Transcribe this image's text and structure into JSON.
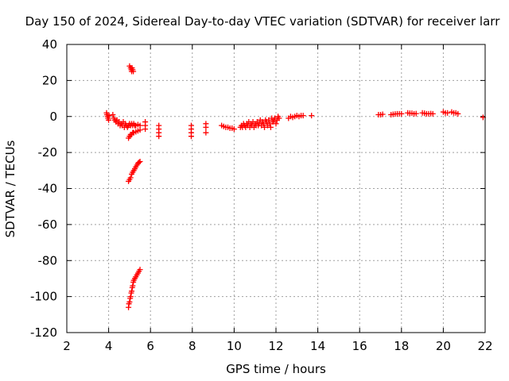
{
  "chart_data": {
    "type": "scatter",
    "title": "Day 150 of 2024, Sidereal Day-to-day VTEC variation (SDTVAR) for receiver larr",
    "xlabel": "GPS time / hours",
    "ylabel": "SDTVAR / TECUs",
    "xlim": [
      2,
      22
    ],
    "ylim": [
      -120,
      40
    ],
    "xticks": [
      "2",
      "4",
      "6",
      "8",
      "10",
      "12",
      "14",
      "16",
      "18",
      "20",
      "22"
    ],
    "yticks": [
      "40",
      "20",
      "0",
      "-20",
      "-40",
      "-60",
      "-80",
      "-100",
      "-120"
    ],
    "grid": true,
    "marker": "+",
    "color": "#ff0000",
    "series": [
      {
        "name": "SDTVAR",
        "points": [
          [
            3.9,
            2
          ],
          [
            3.92,
            1
          ],
          [
            3.95,
            0
          ],
          [
            3.97,
            -1
          ],
          [
            4.0,
            -2
          ],
          [
            4.02,
            0.5
          ],
          [
            4.2,
            1
          ],
          [
            4.25,
            -1
          ],
          [
            4.3,
            -2
          ],
          [
            4.35,
            -3
          ],
          [
            4.4,
            -2
          ],
          [
            4.45,
            -4
          ],
          [
            4.5,
            -3
          ],
          [
            4.55,
            -5
          ],
          [
            4.6,
            -4
          ],
          [
            4.65,
            -5
          ],
          [
            4.7,
            -3
          ],
          [
            4.75,
            -6
          ],
          [
            4.8,
            -4
          ],
          [
            4.85,
            -5
          ],
          [
            4.9,
            -6
          ],
          [
            4.95,
            -5
          ],
          [
            5.0,
            -4
          ],
          [
            5.05,
            -5
          ],
          [
            5.1,
            -4
          ],
          [
            5.15,
            -5
          ],
          [
            5.2,
            -4
          ],
          [
            5.25,
            -5
          ],
          [
            5.3,
            -5
          ],
          [
            5.4,
            -4.5
          ],
          [
            5.5,
            -5
          ],
          [
            5.75,
            -3
          ],
          [
            5.75,
            -5
          ],
          [
            5.75,
            -7
          ],
          [
            5.0,
            28
          ],
          [
            5.05,
            27
          ],
          [
            5.08,
            26
          ],
          [
            5.1,
            25
          ],
          [
            5.12,
            27
          ],
          [
            5.15,
            26
          ],
          [
            5.18,
            25
          ],
          [
            4.95,
            -12
          ],
          [
            5.0,
            -11
          ],
          [
            5.05,
            -10
          ],
          [
            5.1,
            -10
          ],
          [
            5.15,
            -9
          ],
          [
            5.2,
            -9
          ],
          [
            5.3,
            -8.5
          ],
          [
            5.4,
            -8
          ],
          [
            5.5,
            -7.5
          ],
          [
            4.95,
            -36
          ],
          [
            5.0,
            -35
          ],
          [
            5.05,
            -34
          ],
          [
            5.1,
            -32
          ],
          [
            5.15,
            -31
          ],
          [
            5.2,
            -30
          ],
          [
            5.25,
            -29
          ],
          [
            5.3,
            -28
          ],
          [
            5.35,
            -27
          ],
          [
            5.4,
            -26
          ],
          [
            5.45,
            -25.5
          ],
          [
            5.5,
            -25
          ],
          [
            4.95,
            -106
          ],
          [
            4.97,
            -104
          ],
          [
            5.0,
            -103
          ],
          [
            5.03,
            -101
          ],
          [
            5.05,
            -100
          ],
          [
            5.08,
            -98
          ],
          [
            5.1,
            -97
          ],
          [
            5.13,
            -95
          ],
          [
            5.15,
            -94
          ],
          [
            5.18,
            -92
          ],
          [
            5.2,
            -91
          ],
          [
            5.25,
            -90
          ],
          [
            5.3,
            -89
          ],
          [
            5.35,
            -88
          ],
          [
            5.4,
            -87
          ],
          [
            5.45,
            -86
          ],
          [
            5.5,
            -85
          ],
          [
            6.4,
            -5
          ],
          [
            6.4,
            -7
          ],
          [
            6.4,
            -9
          ],
          [
            6.4,
            -11
          ],
          [
            7.95,
            -5
          ],
          [
            7.95,
            -7
          ],
          [
            7.95,
            -9
          ],
          [
            7.95,
            -11
          ],
          [
            8.65,
            -4
          ],
          [
            8.65,
            -6
          ],
          [
            8.65,
            -9
          ],
          [
            9.4,
            -5
          ],
          [
            9.5,
            -5.5
          ],
          [
            9.6,
            -6
          ],
          [
            9.7,
            -6
          ],
          [
            9.8,
            -6.5
          ],
          [
            9.9,
            -6.5
          ],
          [
            10.0,
            -7
          ],
          [
            10.3,
            -6
          ],
          [
            10.35,
            -5
          ],
          [
            10.4,
            -6
          ],
          [
            10.45,
            -4
          ],
          [
            10.5,
            -5
          ],
          [
            10.55,
            -6
          ],
          [
            10.6,
            -4
          ],
          [
            10.65,
            -5
          ],
          [
            10.7,
            -3
          ],
          [
            10.75,
            -6
          ],
          [
            10.8,
            -4
          ],
          [
            10.85,
            -5
          ],
          [
            10.9,
            -3
          ],
          [
            10.95,
            -6
          ],
          [
            11.0,
            -4
          ],
          [
            11.05,
            -5
          ],
          [
            11.1,
            -3
          ],
          [
            11.15,
            -5
          ],
          [
            11.2,
            -4
          ],
          [
            11.25,
            -2
          ],
          [
            11.3,
            -5
          ],
          [
            11.35,
            -3
          ],
          [
            11.4,
            -4
          ],
          [
            11.45,
            -6
          ],
          [
            11.5,
            -2
          ],
          [
            11.55,
            -3
          ],
          [
            11.6,
            -5
          ],
          [
            11.65,
            -2
          ],
          [
            11.7,
            -4
          ],
          [
            11.75,
            -6
          ],
          [
            11.8,
            -1
          ],
          [
            11.85,
            -3
          ],
          [
            11.9,
            -2
          ],
          [
            11.95,
            -1
          ],
          [
            12.0,
            -4
          ],
          [
            12.05,
            -2
          ],
          [
            12.1,
            0
          ],
          [
            12.15,
            -1
          ],
          [
            12.6,
            -1
          ],
          [
            12.7,
            0
          ],
          [
            12.8,
            -0.5
          ],
          [
            12.9,
            0
          ],
          [
            13.0,
            0.5
          ],
          [
            13.1,
            0
          ],
          [
            13.2,
            0.5
          ],
          [
            13.3,
            0.5
          ],
          [
            13.7,
            0.5
          ],
          [
            16.9,
            1
          ],
          [
            17.0,
            1
          ],
          [
            17.1,
            1.2
          ],
          [
            17.5,
            1
          ],
          [
            17.6,
            1.2
          ],
          [
            17.7,
            1.4
          ],
          [
            17.8,
            1.5
          ],
          [
            17.9,
            1.5
          ],
          [
            18.0,
            1.5
          ],
          [
            18.3,
            2
          ],
          [
            18.4,
            1.8
          ],
          [
            18.5,
            1.8
          ],
          [
            18.6,
            1.5
          ],
          [
            18.7,
            1.6
          ],
          [
            19.0,
            2
          ],
          [
            19.1,
            1.8
          ],
          [
            19.2,
            1.5
          ],
          [
            19.3,
            1.5
          ],
          [
            19.4,
            1.6
          ],
          [
            19.5,
            1.5
          ],
          [
            20.0,
            2.5
          ],
          [
            20.1,
            2
          ],
          [
            20.2,
            2
          ],
          [
            20.4,
            2.5
          ],
          [
            20.5,
            2
          ],
          [
            20.6,
            2
          ],
          [
            20.7,
            1.5
          ],
          [
            21.9,
            -0.5
          ]
        ]
      }
    ]
  }
}
